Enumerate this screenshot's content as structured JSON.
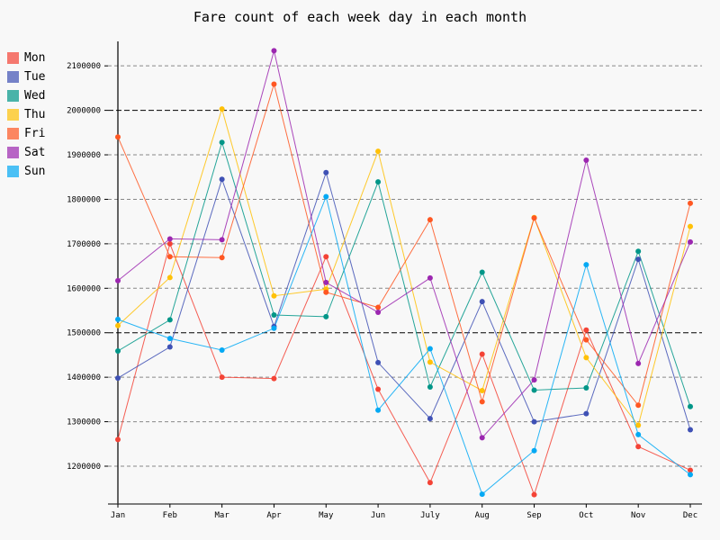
{
  "chart_data": {
    "type": "line",
    "title": "Fare count of each week day in each month",
    "categories": [
      "Jan",
      "Feb",
      "Mar",
      "Apr",
      "May",
      "Jun",
      "July",
      "Aug",
      "Sep",
      "Oct",
      "Nov",
      "Dec"
    ],
    "ylim": [
      1115000,
      2155000
    ],
    "yticks": [
      1200000,
      1300000,
      1400000,
      1500000,
      1600000,
      1700000,
      1800000,
      1900000,
      2000000,
      2100000
    ],
    "ytick_labels": [
      "1200000",
      "1300000",
      "1400000",
      "1500000",
      "1600000",
      "1700000",
      "1800000",
      "1900000",
      "2000000",
      "2100000"
    ],
    "major_gridlines": [
      1500000,
      2000000
    ],
    "grid": true,
    "legend_position": "top-left",
    "series": [
      {
        "name": "Mon",
        "color": "#f44336",
        "values": [
          1260000,
          1700000,
          1400000,
          1397000,
          1671000,
          1373000,
          1163000,
          1452000,
          1136000,
          1506000,
          1244000,
          1191000
        ]
      },
      {
        "name": "Tue",
        "color": "#3f51b5",
        "values": [
          1398000,
          1468000,
          1845000,
          1514000,
          1860000,
          1433000,
          1307000,
          1570000,
          1300000,
          1318000,
          1665000,
          1282000
        ]
      },
      {
        "name": "Wed",
        "color": "#009688",
        "values": [
          1459000,
          1529000,
          1928000,
          1540000,
          1536000,
          1839000,
          1378000,
          1636000,
          1371000,
          1376000,
          1683000,
          1334000
        ]
      },
      {
        "name": "Thu",
        "color": "#ffc107",
        "values": [
          1516000,
          1624000,
          2003000,
          1583000,
          1598000,
          1908000,
          1434000,
          1370000,
          1759000,
          1444000,
          1292000,
          1739000
        ]
      },
      {
        "name": "Fri",
        "color": "#ff5722",
        "values": [
          1940000,
          1671000,
          1669000,
          2059000,
          1591000,
          1557000,
          1754000,
          1345000,
          1758000,
          1484000,
          1337000,
          1791000
        ]
      },
      {
        "name": "Sat",
        "color": "#9c27b0",
        "values": [
          1617000,
          1711000,
          1709000,
          2134000,
          1613000,
          1546000,
          1623000,
          1264000,
          1394000,
          1888000,
          1431000,
          1704000
        ]
      },
      {
        "name": "Sun",
        "color": "#03a9f4",
        "values": [
          1530000,
          1487000,
          1461000,
          1510000,
          1806000,
          1326000,
          1464000,
          1137000,
          1235000,
          1653000,
          1271000,
          1181000
        ]
      }
    ]
  }
}
